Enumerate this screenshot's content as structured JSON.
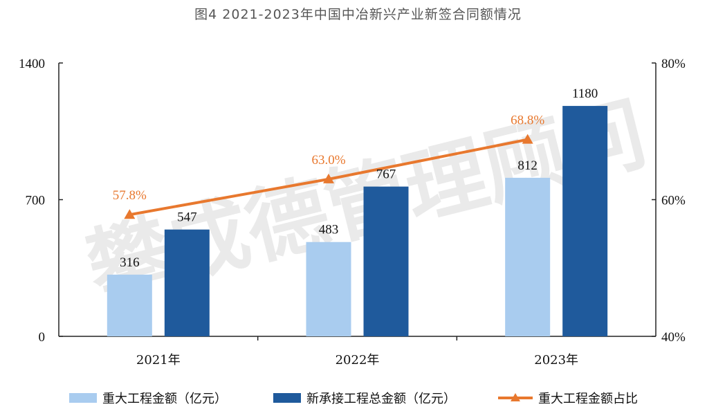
{
  "title": "图4 2021-2023年中国中冶新兴产业新签合同额情况",
  "watermark": "攀成德管理顾问",
  "chart_data": {
    "type": "bar",
    "categories": [
      "2021年",
      "2022年",
      "2023年"
    ],
    "series": [
      {
        "name": "重大工程金额（亿元）",
        "type": "bar",
        "axis": "left",
        "color": "#A9CCEF",
        "values": [
          316,
          483,
          812
        ]
      },
      {
        "name": "新承接工程总金额（亿元）",
        "type": "bar",
        "axis": "left",
        "color": "#1F5A9C",
        "values": [
          547,
          767,
          1180
        ]
      },
      {
        "name": "重大工程金额占比",
        "type": "line",
        "axis": "right",
        "color": "#E8782E",
        "values": [
          57.8,
          63.0,
          68.8
        ],
        "labels": [
          "57.8%",
          "63.0%",
          "68.8%"
        ]
      }
    ],
    "y_left": {
      "ticks": [
        "0",
        "700",
        "1400"
      ],
      "range": [
        0,
        1400
      ]
    },
    "y_right": {
      "ticks": [
        "40%",
        "60%",
        "80%"
      ],
      "range": [
        40,
        80
      ]
    },
    "grid": false,
    "legend_position": "bottom"
  }
}
